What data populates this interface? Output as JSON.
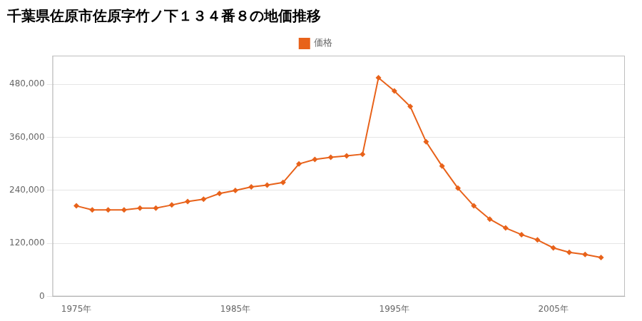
{
  "chart_data": {
    "type": "line",
    "title": "千葉県佐原市佐原字竹ノ下１３４番８の地価推移",
    "x": [
      1975,
      1976,
      1977,
      1978,
      1979,
      1980,
      1981,
      1982,
      1983,
      1984,
      1985,
      1986,
      1987,
      1988,
      1989,
      1990,
      1991,
      1992,
      1993,
      1994,
      1995,
      1996,
      1997,
      1998,
      1999,
      2000,
      2001,
      2002,
      2003,
      2004,
      2005,
      2006,
      2007,
      2008
    ],
    "series": [
      {
        "name": "価格",
        "color": "#e8621a",
        "marker": "diamond",
        "values": [
          205000,
          196000,
          196000,
          196000,
          200000,
          200000,
          207000,
          215000,
          220000,
          233000,
          240000,
          248000,
          252000,
          258000,
          300000,
          310000,
          315000,
          318000,
          322000,
          495000,
          465000,
          430000,
          350000,
          295000,
          245000,
          205000,
          175000,
          155000,
          140000,
          128000,
          110000,
          100000,
          95000,
          88000
        ]
      }
    ],
    "xlim": [
      1973.5,
      2009.5
    ],
    "xticks": [
      {
        "value": 1975,
        "label": "1975年"
      },
      {
        "value": 1985,
        "label": "1985年"
      },
      {
        "value": 1995,
        "label": "1995年"
      },
      {
        "value": 2005,
        "label": "2005年"
      }
    ],
    "ylim": [
      0,
      545000
    ],
    "yticks": [
      0,
      {
        "value": 120000,
        "label": "120,000"
      },
      {
        "value": 240000,
        "label": "240,000"
      },
      {
        "value": 360000,
        "label": "360,000"
      },
      {
        "value": 480000,
        "label": "480,000"
      }
    ],
    "grid": "y",
    "legend": "top"
  }
}
